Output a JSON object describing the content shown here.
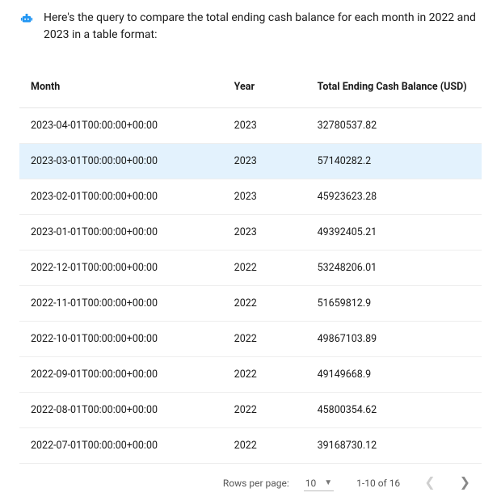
{
  "intro": "Here's the query to compare the total ending cash balance for each month in 2022 and 2023 in a table format:",
  "icon_color": "#2296f3",
  "table": {
    "columns": [
      "Month",
      "Year",
      "Total Ending Cash Balance (USD)"
    ],
    "column_widths": [
      "44%",
      "18%",
      "38%"
    ],
    "highlight_row_index": 1,
    "highlight_color": "#e3f2fd",
    "border_color": "#eeeeee",
    "header_border_color": "#e5e5e5",
    "font_size": 12.5,
    "rows": [
      [
        "2023-04-01T00:00:00+00:00",
        "2023",
        "32780537.82"
      ],
      [
        "2023-03-01T00:00:00+00:00",
        "2023",
        "57140282.2"
      ],
      [
        "2023-02-01T00:00:00+00:00",
        "2023",
        "45923623.28"
      ],
      [
        "2023-01-01T00:00:00+00:00",
        "2023",
        "49392405.21"
      ],
      [
        "2022-12-01T00:00:00+00:00",
        "2022",
        "53248206.01"
      ],
      [
        "2022-11-01T00:00:00+00:00",
        "2022",
        "51659812.9"
      ],
      [
        "2022-10-01T00:00:00+00:00",
        "2022",
        "49867103.89"
      ],
      [
        "2022-09-01T00:00:00+00:00",
        "2022",
        "49149668.9"
      ],
      [
        "2022-08-01T00:00:00+00:00",
        "2022",
        "45800354.62"
      ],
      [
        "2022-07-01T00:00:00+00:00",
        "2022",
        "39168730.12"
      ]
    ]
  },
  "pagination": {
    "rows_per_page_label": "Rows per page:",
    "rows_per_page_value": "10",
    "range_text": "1-10 of 16",
    "prev_enabled": false,
    "next_enabled": true
  }
}
